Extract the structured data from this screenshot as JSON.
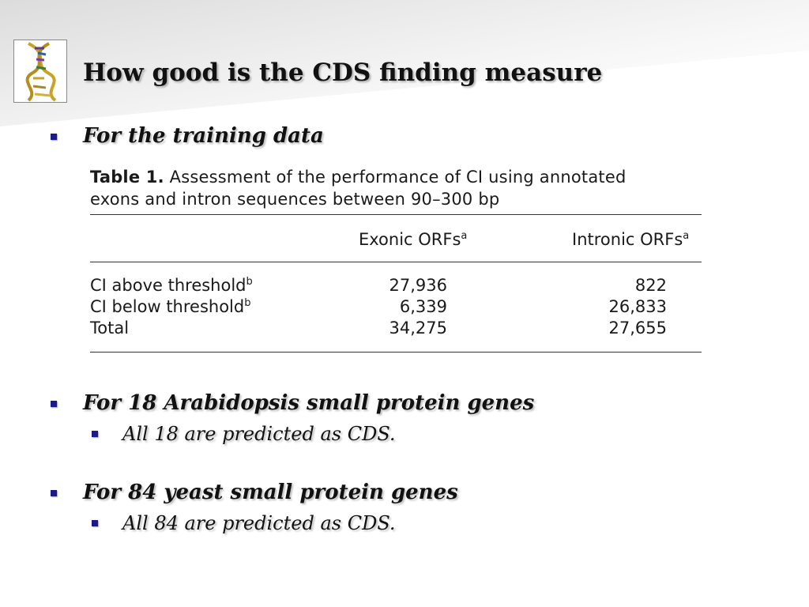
{
  "slide": {
    "title": "How good is the CDS finding measure",
    "logo_icon": "dna-helix-icon",
    "bullet_color": "#1a1a8c"
  },
  "bullets": [
    {
      "text": "For the training data"
    },
    {
      "text": "For 18 Arabidopsis small protein genes",
      "sub": "All 18 are predicted as CDS."
    },
    {
      "text": "For 84 yeast small protein genes",
      "sub": "All 84 are predicted as CDS."
    }
  ],
  "table": {
    "label": "Table 1.",
    "caption_line1": "Assessment of the performance of CI using annotated",
    "caption_line2": "exons and intron sequences between 90–300 bp",
    "columns": [
      {
        "label": "Exonic ORFs",
        "sup": "a"
      },
      {
        "label": "Intronic ORFs",
        "sup": "a"
      }
    ],
    "rows": [
      {
        "label": "CI above threshold",
        "sup": "b",
        "values": [
          "27,936",
          "822"
        ]
      },
      {
        "label": "CI below threshold",
        "sup": "b",
        "values": [
          "6,339",
          "26,833"
        ]
      },
      {
        "label": "Total",
        "sup": "",
        "values": [
          "34,275",
          "27,655"
        ]
      }
    ]
  }
}
